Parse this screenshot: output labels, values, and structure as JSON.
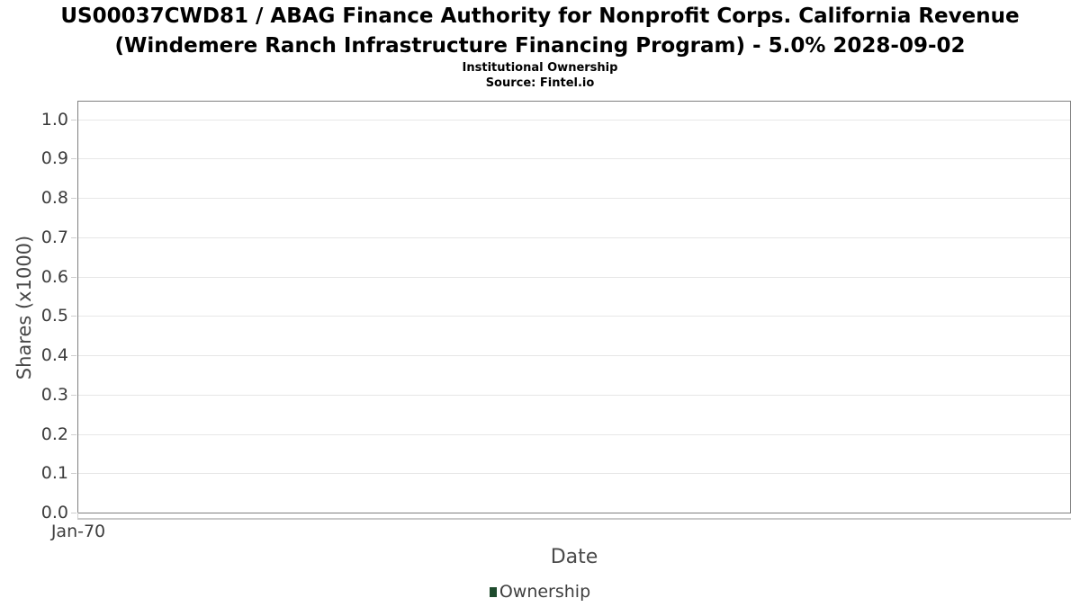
{
  "header": {
    "title_line1": "US00037CWD81 / ABAG Finance Authority for Nonprofit Corps. California Revenue",
    "title_line2": "(Windemere Ranch Infrastructure Financing Program) - 5.0% 2028-09-02",
    "subtitle": "Institutional Ownership",
    "source": "Source: Fintel.io"
  },
  "chart_data": {
    "type": "line",
    "title": "US00037CWD81 / ABAG Finance Authority for Nonprofit Corps. California Revenue (Windemere Ranch Infrastructure Financing Program) - 5.0% 2028-09-02",
    "subtitle": "Institutional Ownership",
    "source": "Source: Fintel.io",
    "xlabel": "Date",
    "ylabel": "Shares (x1000)",
    "grid": true,
    "legend_position": "bottom-center",
    "x_ticks": [
      "Jan-70"
    ],
    "y_ticks": [
      1.0,
      0.9,
      0.8,
      0.7,
      0.6,
      0.5,
      0.4,
      0.3,
      0.2,
      0.1,
      0.0
    ],
    "y_tick_labels": [
      "1.0",
      "0.9",
      "0.8",
      "0.7",
      "0.6",
      "0.5",
      "0.4",
      "0.3",
      "0.2",
      "0.1",
      "0.0"
    ],
    "ylim": [
      0,
      1.045
    ],
    "series": [
      {
        "name": "Ownership",
        "color": "#1e4b2d",
        "x": [],
        "y": []
      }
    ],
    "legend": [
      {
        "label": "Ownership",
        "color": "#1e4b2d"
      }
    ],
    "colors": {
      "grid": "#e7e7e7",
      "plot_border": "#808080",
      "tick_text": "#3d3d3d",
      "axis_title_text": "#4a4a4a",
      "title_text": "#000000",
      "legend_swatch": "#1e4b2d",
      "background": "#ffffff"
    }
  }
}
